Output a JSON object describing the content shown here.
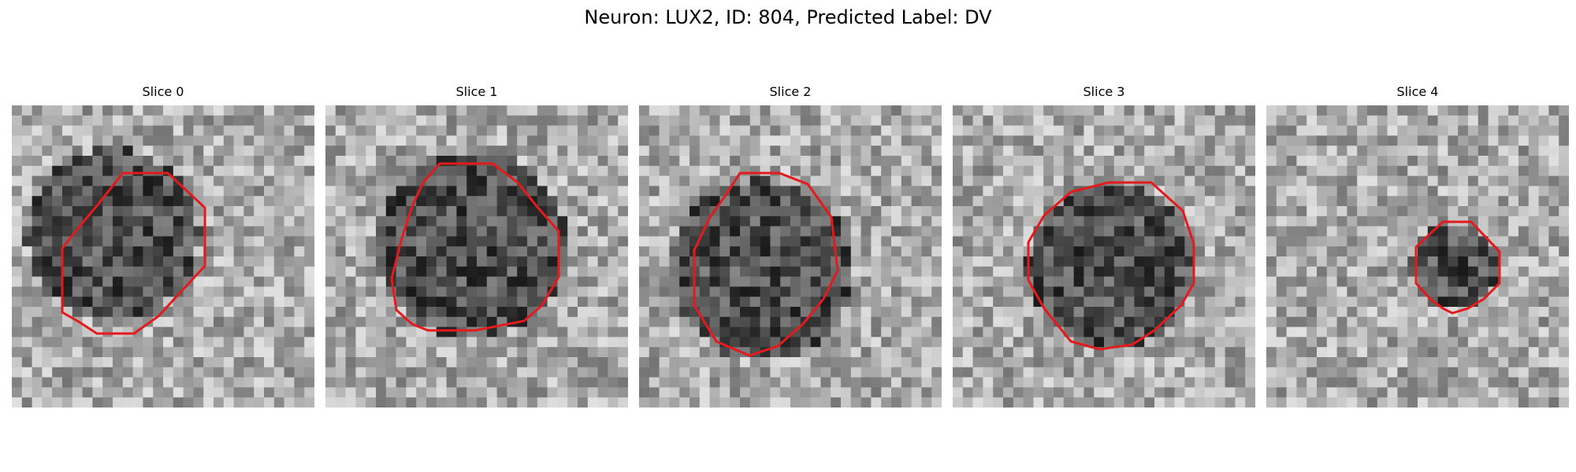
{
  "figure": {
    "title": "Neuron: LUX2, ID: 804, Predicted Label: DV",
    "contour_color": "#e41a1c"
  },
  "panels": [
    {
      "title": "Slice 0",
      "contour": "red outline"
    },
    {
      "title": "Slice 1",
      "contour": "red outline"
    },
    {
      "title": "Slice 2",
      "contour": "red outline"
    },
    {
      "title": "Slice 3",
      "contour": "red outline"
    },
    {
      "title": "Slice 4",
      "contour": "red outline"
    }
  ]
}
